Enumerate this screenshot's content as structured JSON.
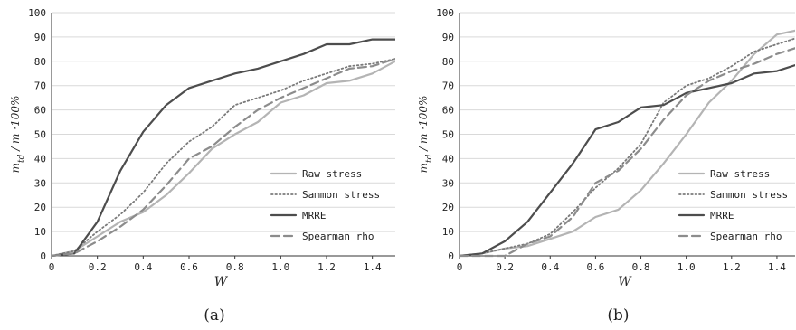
{
  "chart_data": [
    {
      "type": "line",
      "caption": "(a)",
      "xlabel": "W",
      "ylabel": "m_td / m ·100%",
      "xlim": [
        0,
        1.5
      ],
      "ylim": [
        0,
        100
      ],
      "xticks": [
        0,
        0.2,
        0.4,
        0.6,
        0.8,
        1.0,
        1.2,
        1.4
      ],
      "xtick_labels": [
        "0",
        "0.2",
        "0.4",
        "0.6",
        "0.8",
        "1.0",
        "1.2",
        "1.4"
      ],
      "yticks": [
        0,
        10,
        20,
        30,
        40,
        50,
        60,
        70,
        80,
        90,
        100
      ],
      "grid": "horizontal",
      "legend_position": "bottom-right",
      "x": [
        0,
        0.1,
        0.2,
        0.3,
        0.4,
        0.5,
        0.6,
        0.7,
        0.8,
        0.9,
        1.0,
        1.1,
        1.2,
        1.3,
        1.4,
        1.5
      ],
      "series": [
        {
          "name": "Raw stress",
          "color": "#b4b4b4",
          "style": "solid",
          "values": [
            0,
            2,
            8,
            14,
            18,
            25,
            34,
            44,
            50,
            55,
            63,
            66,
            71,
            72,
            75,
            80
          ]
        },
        {
          "name": "Sammon stress",
          "color": "#7a7a7a",
          "style": "dotted",
          "values": [
            0,
            2,
            10,
            17,
            26,
            38,
            47,
            53,
            62,
            65,
            68,
            72,
            75,
            78,
            79,
            81
          ]
        },
        {
          "name": "MRRE",
          "color": "#4d4d4d",
          "style": "solid",
          "values": [
            0,
            1,
            14,
            35,
            51,
            62,
            69,
            72,
            75,
            77,
            80,
            83,
            87,
            87,
            89,
            89
          ]
        },
        {
          "name": "Spearman rho",
          "color": "#8c8c8c",
          "style": "dashed",
          "values": [
            0,
            1,
            6,
            12,
            19,
            29,
            40,
            45,
            53,
            60,
            65,
            69,
            73,
            77,
            78,
            81
          ]
        }
      ]
    },
    {
      "type": "line",
      "caption": "(b)",
      "xlabel": "W",
      "ylabel": "m_td / m ·100%",
      "xlim": [
        0,
        1.5
      ],
      "ylim": [
        0,
        100
      ],
      "xticks": [
        0,
        0.2,
        0.4,
        0.6,
        0.8,
        1.0,
        1.2,
        1.4
      ],
      "xtick_labels": [
        "0",
        "0.2",
        "0.4",
        "0.6",
        "0.8",
        "1.0",
        "1.2",
        "1.4"
      ],
      "yticks": [
        0,
        10,
        20,
        30,
        40,
        50,
        60,
        70,
        80,
        90,
        100
      ],
      "grid": "horizontal",
      "legend_position": "bottom-right",
      "x": [
        0,
        0.1,
        0.2,
        0.3,
        0.4,
        0.5,
        0.6,
        0.7,
        0.8,
        0.9,
        1.0,
        1.1,
        1.2,
        1.3,
        1.4,
        1.5
      ],
      "series": [
        {
          "name": "Raw stress",
          "color": "#b4b4b4",
          "style": "solid",
          "values": [
            0,
            1,
            3,
            4,
            7,
            10,
            16,
            19,
            27,
            38,
            50,
            63,
            72,
            83,
            91,
            93
          ]
        },
        {
          "name": "Sammon stress",
          "color": "#7a7a7a",
          "style": "dotted",
          "values": [
            0,
            1,
            3,
            5,
            9,
            18,
            28,
            36,
            46,
            63,
            70,
            73,
            78,
            84,
            87,
            90
          ]
        },
        {
          "name": "MRRE",
          "color": "#4d4d4d",
          "style": "solid",
          "values": [
            0,
            1,
            6,
            14,
            26,
            38,
            52,
            55,
            61,
            62,
            67,
            69,
            71,
            75,
            76,
            79
          ]
        },
        {
          "name": "Spearman rho",
          "color": "#8c8c8c",
          "style": "dashed",
          "values": [
            0,
            0,
            0,
            5,
            8,
            16,
            30,
            35,
            44,
            56,
            66,
            72,
            76,
            79,
            83,
            86
          ]
        }
      ]
    }
  ]
}
